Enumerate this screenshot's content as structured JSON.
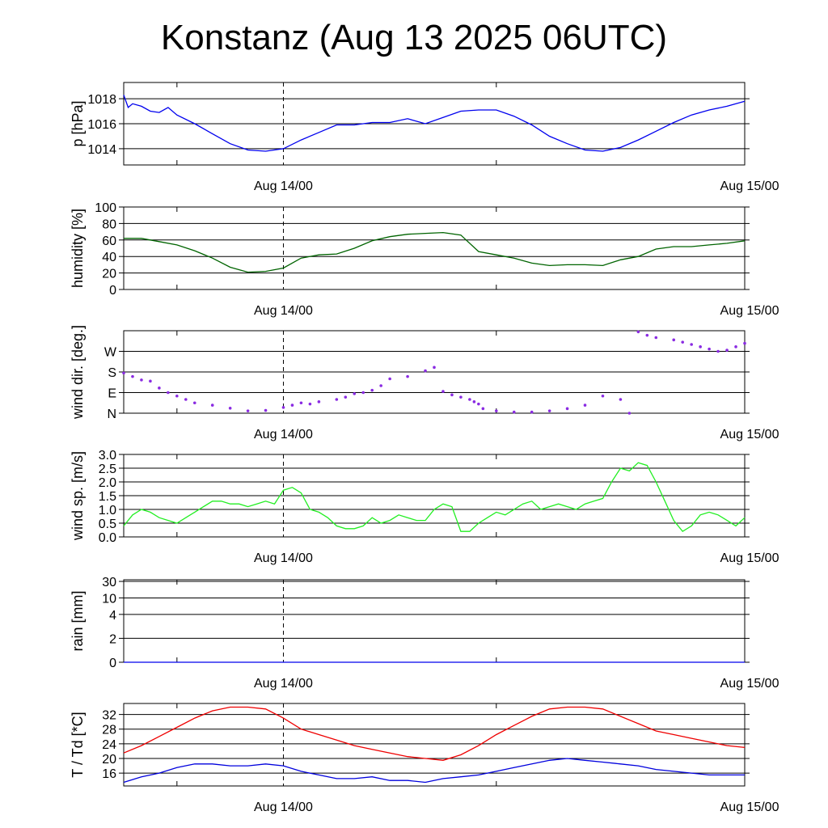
{
  "title": "Konstanz (Aug 13 2025 06UTC)",
  "x_tick_labels": [
    "Aug 14/00",
    "Aug 15/00"
  ],
  "chart_data": [
    {
      "type": "line",
      "id": "pressure",
      "ylabel": "p [hPa]",
      "ylim": [
        1012.7,
        1019.3
      ],
      "yticks": [
        1014,
        1016,
        1018
      ],
      "ytick_labels": [
        "1014",
        "1016",
        "1018"
      ],
      "grid": true,
      "color": "#0000ee",
      "x_hours": [
        0,
        0.5,
        1,
        2,
        3,
        4,
        5,
        6,
        8,
        10,
        12,
        14,
        16,
        18,
        20,
        22,
        24,
        26,
        28,
        30,
        32,
        34,
        36,
        38,
        40,
        42,
        44,
        46,
        48,
        50,
        52,
        54,
        56,
        58,
        60,
        62,
        64,
        66,
        68,
        70
      ],
      "values": [
        1018.3,
        1017.3,
        1017.6,
        1017.4,
        1017.0,
        1016.9,
        1017.3,
        1016.7,
        1016.0,
        1015.2,
        1014.4,
        1013.9,
        1013.8,
        1014.0,
        1014.7,
        1015.3,
        1015.9,
        1015.9,
        1016.1,
        1016.1,
        1016.4,
        1016.0,
        1016.5,
        1017.0,
        1017.1,
        1017.1,
        1016.6,
        1015.9,
        1015.0,
        1014.4,
        1013.9,
        1013.8,
        1014.1,
        1014.7,
        1015.4,
        1016.1,
        1016.7,
        1017.1,
        1017.4,
        1017.8
      ]
    },
    {
      "type": "line",
      "id": "humidity",
      "ylabel": "humidity [%]",
      "ylim": [
        0,
        100
      ],
      "yticks": [
        0,
        20,
        40,
        60,
        80,
        100
      ],
      "ytick_labels": [
        "0",
        "20",
        "40",
        "60",
        "80",
        "100"
      ],
      "grid": true,
      "color": "#006400",
      "x_hours": [
        0,
        2,
        4,
        6,
        8,
        10,
        12,
        14,
        16,
        18,
        20,
        22,
        24,
        26,
        28,
        30,
        32,
        34,
        36,
        38,
        40,
        42,
        44,
        46,
        48,
        50,
        52,
        54,
        56,
        58,
        60,
        62,
        64,
        66,
        68,
        70
      ],
      "values": [
        62,
        62,
        58,
        54,
        47,
        38,
        27,
        21,
        22,
        26,
        38,
        42,
        43,
        50,
        59,
        64,
        67,
        68,
        69,
        66,
        46,
        42,
        38,
        32,
        29,
        30,
        30,
        29,
        36,
        40,
        49,
        52,
        52,
        54,
        56,
        59
      ]
    },
    {
      "type": "scatter",
      "id": "wind_direction",
      "ylabel": "wind dir. [deg.]",
      "ylim": [
        0,
        360
      ],
      "yticks": [
        0,
        90,
        180,
        270
      ],
      "ytick_labels": [
        "N",
        "E",
        "S",
        "W"
      ],
      "grid": true,
      "color": "#8a2be2",
      "x_hours": [
        0,
        1,
        2,
        3,
        4,
        5,
        6,
        7,
        8,
        10,
        12,
        14,
        16,
        18,
        19,
        20,
        21,
        22,
        24,
        25,
        26,
        27,
        28,
        29,
        30,
        32,
        34,
        35,
        36,
        37,
        38,
        39,
        39.5,
        40,
        40.5,
        42,
        44,
        46,
        48,
        50,
        52,
        54,
        56,
        57,
        58,
        59,
        60,
        62,
        63,
        64,
        65,
        66,
        67,
        68,
        69,
        70
      ],
      "values": [
        175,
        160,
        145,
        140,
        110,
        90,
        75,
        60,
        45,
        35,
        22,
        10,
        12,
        25,
        35,
        45,
        40,
        50,
        60,
        70,
        85,
        90,
        100,
        120,
        150,
        160,
        185,
        200,
        95,
        80,
        70,
        60,
        50,
        40,
        20,
        10,
        5,
        5,
        10,
        20,
        35,
        75,
        60,
        0,
        355,
        340,
        330,
        320,
        310,
        300,
        290,
        280,
        270,
        275,
        290,
        305
      ]
    },
    {
      "type": "line",
      "id": "wind_speed",
      "ylabel": "wind sp. [m/s]",
      "ylim": [
        0,
        3
      ],
      "yticks": [
        0,
        0.5,
        1,
        1.5,
        2,
        2.5,
        3
      ],
      "ytick_labels": [
        "0.0",
        "0.5",
        "1.0",
        "1.5",
        "2.0",
        "2.5",
        "3.0"
      ],
      "grid": true,
      "color": "#22ee22",
      "x_hours": [
        0,
        1,
        2,
        3,
        4,
        5,
        6,
        7,
        8,
        9,
        10,
        11,
        12,
        13,
        14,
        15,
        16,
        17,
        18,
        19,
        20,
        21,
        22,
        23,
        24,
        25,
        26,
        27,
        28,
        29,
        30,
        31,
        32,
        33,
        34,
        35,
        36,
        37,
        38,
        39,
        40,
        41,
        42,
        43,
        44,
        45,
        46,
        47,
        48,
        49,
        50,
        51,
        52,
        53,
        54,
        55,
        56,
        57,
        58,
        59,
        60,
        61,
        62,
        63,
        64,
        65,
        66,
        67,
        68,
        69,
        70
      ],
      "values": [
        0.4,
        0.8,
        1.0,
        0.9,
        0.7,
        0.6,
        0.5,
        0.7,
        0.9,
        1.1,
        1.3,
        1.3,
        1.2,
        1.2,
        1.1,
        1.2,
        1.3,
        1.2,
        1.7,
        1.8,
        1.6,
        1.0,
        0.9,
        0.7,
        0.4,
        0.3,
        0.3,
        0.4,
        0.7,
        0.5,
        0.6,
        0.8,
        0.7,
        0.6,
        0.6,
        1.0,
        1.2,
        1.1,
        0.2,
        0.2,
        0.5,
        0.7,
        0.9,
        0.8,
        1.0,
        1.2,
        1.3,
        1.0,
        1.1,
        1.2,
        1.1,
        1.0,
        1.2,
        1.3,
        1.4,
        2.0,
        2.5,
        2.4,
        2.7,
        2.6,
        2.0,
        1.3,
        0.6,
        0.2,
        0.4,
        0.8,
        0.9,
        0.8,
        0.6,
        0.4,
        0.7
      ]
    },
    {
      "type": "line",
      "id": "rain",
      "ylabel": "rain [mm]",
      "ylim_mm": [
        0,
        30
      ],
      "yticks": [
        0,
        2,
        4,
        10,
        30
      ],
      "ytick_labels": [
        "0",
        "2",
        "4",
        "10",
        "30"
      ],
      "grid": true,
      "color": "#0000ee",
      "x_hours": [
        0,
        70
      ],
      "values": [
        0,
        0
      ]
    },
    {
      "type": "line",
      "id": "temperature",
      "ylabel": "T / Td [*C]",
      "ylim": [
        12.5,
        35
      ],
      "yticks": [
        16,
        20,
        24,
        28,
        32
      ],
      "ytick_labels": [
        "16",
        "20",
        "24",
        "28",
        "32"
      ],
      "grid": true,
      "x_hours": [
        0,
        2,
        4,
        6,
        8,
        10,
        12,
        14,
        16,
        18,
        20,
        22,
        24,
        26,
        28,
        30,
        32,
        34,
        36,
        38,
        40,
        42,
        44,
        46,
        48,
        50,
        52,
        54,
        56,
        58,
        60,
        62,
        64,
        66,
        68,
        70
      ],
      "series": [
        {
          "color": "#ee0000",
          "values": [
            21.5,
            23.5,
            26,
            28.5,
            31,
            33,
            34,
            34,
            33.5,
            31,
            28,
            26.5,
            25,
            23.5,
            22.5,
            21.5,
            20.5,
            20,
            19.5,
            21,
            23.5,
            26.5,
            29,
            31.5,
            33.5,
            34,
            34,
            33.5,
            31.5,
            29.5,
            27.5,
            26.5,
            25.5,
            24.5,
            23.5,
            23
          ]
        },
        {
          "color": "#0000dd",
          "values": [
            13.5,
            15,
            16,
            17.5,
            18.5,
            18.5,
            18,
            18,
            18.5,
            18,
            16.5,
            15.5,
            14.5,
            14.5,
            15,
            14,
            14,
            13.5,
            14.5,
            15,
            15.5,
            16.5,
            17.5,
            18.5,
            19.5,
            20,
            19.5,
            19,
            18.5,
            18,
            17,
            16.5,
            16,
            15.5,
            15.5,
            15.5
          ]
        }
      ]
    }
  ]
}
